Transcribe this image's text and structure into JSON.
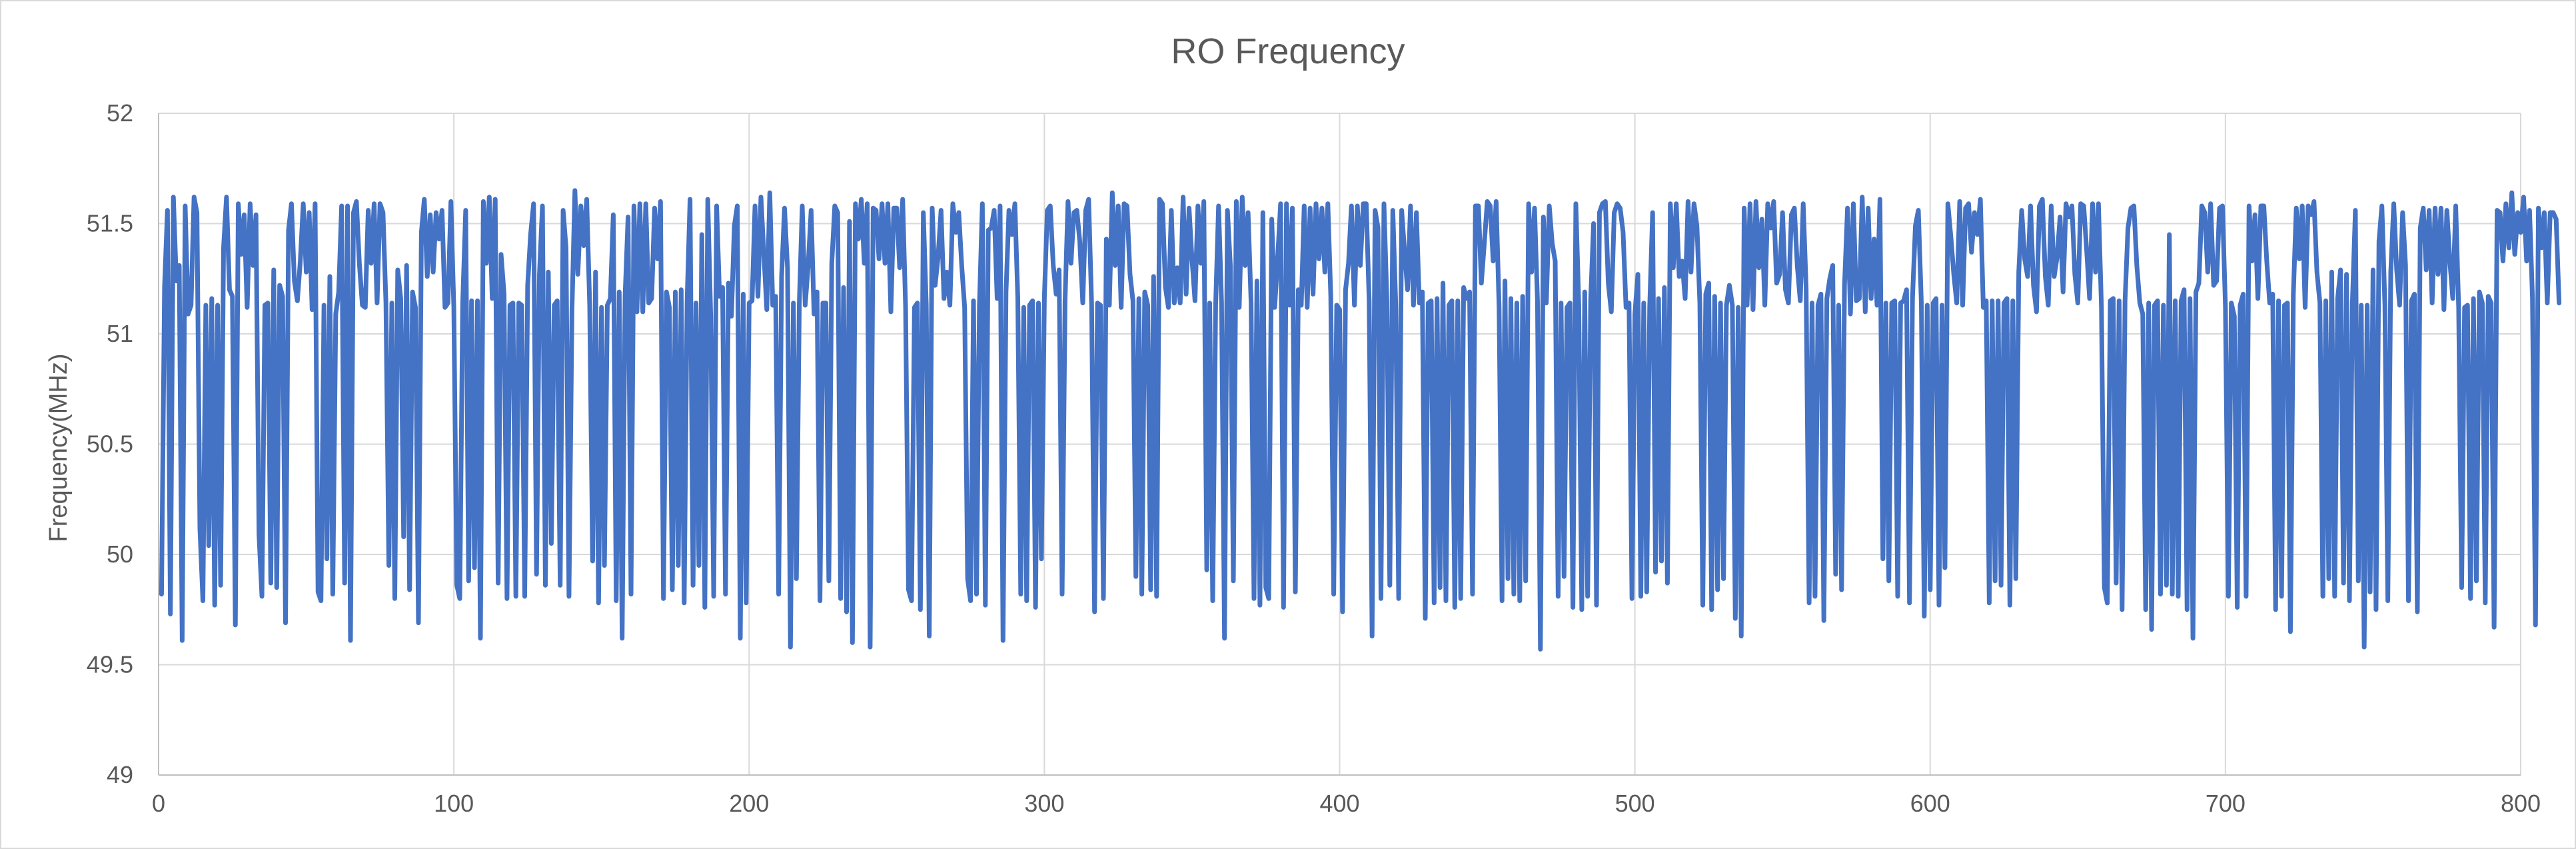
{
  "chart_data": {
    "type": "line",
    "title": "RO Frequency",
    "xlabel": "",
    "ylabel": "Frequency(MHz)",
    "xlim": [
      0,
      800
    ],
    "ylim": [
      49,
      52
    ],
    "x_ticks": [
      "0",
      "100",
      "200",
      "300",
      "400",
      "500",
      "600",
      "700",
      "800"
    ],
    "y_ticks": [
      "49",
      "49.5",
      "50",
      "50.5",
      "51",
      "51.5",
      "52"
    ],
    "grid": true,
    "legend": "none",
    "series": [
      {
        "color": "#4472C4",
        "x_start": 1,
        "x_step": 1,
        "values": [
          49.82,
          51.21,
          51.56,
          49.73,
          51.62,
          51.24,
          51.31,
          49.61,
          51.58,
          51.09,
          51.13,
          51.62,
          51.55,
          50.12,
          49.79,
          51.13,
          50.04,
          51.16,
          49.77,
          51.13,
          49.86,
          51.39,
          51.62,
          51.2,
          51.17,
          49.68,
          51.59,
          51.36,
          51.54,
          51.12,
          51.59,
          51.31,
          51.54,
          50.09,
          49.81,
          51.13,
          51.14,
          49.87,
          51.29,
          49.85,
          51.22,
          51.17,
          49.69,
          51.47,
          51.59,
          51.24,
          51.15,
          51.33,
          51.59,
          51.28,
          51.55,
          51.11,
          51.59,
          49.83,
          49.79,
          51.13,
          49.98,
          51.26,
          49.82,
          51.09,
          51.19,
          51.58,
          49.87,
          51.58,
          49.61,
          51.55,
          51.6,
          51.32,
          51.13,
          51.12,
          51.56,
          51.32,
          51.59,
          51.14,
          51.59,
          51.55,
          51.14,
          49.95,
          51.14,
          49.8,
          51.29,
          51.16,
          50.08,
          51.31,
          49.84,
          51.19,
          51.12,
          49.69,
          51.46,
          51.61,
          51.26,
          51.54,
          51.28,
          51.55,
          51.43,
          51.56,
          51.12,
          51.14,
          51.6,
          51.12,
          49.86,
          49.8,
          51.14,
          51.56,
          49.88,
          51.15,
          49.94,
          51.15,
          49.62,
          51.6,
          51.32,
          51.62,
          51.16,
          51.61,
          49.87,
          51.36,
          51.18,
          49.8,
          51.13,
          51.14,
          49.81,
          51.14,
          51.13,
          49.81,
          51.22,
          51.45,
          51.59,
          49.91,
          51.27,
          51.58,
          49.86,
          51.28,
          50.05,
          51.13,
          51.15,
          49.86,
          51.56,
          51.39,
          49.81,
          51.11,
          51.65,
          51.27,
          51.58,
          51.4,
          51.61,
          51.13,
          49.97,
          51.28,
          49.78,
          51.12,
          49.95,
          51.13,
          51.16,
          51.54,
          49.79,
          51.19,
          49.62,
          51.17,
          51.53,
          49.82,
          51.58,
          51.1,
          51.59,
          51.1,
          51.59,
          51.14,
          51.16,
          51.57,
          51.34,
          51.6,
          49.8,
          51.19,
          51.12,
          49.84,
          51.19,
          49.95,
          51.2,
          49.78,
          51.15,
          51.61,
          49.86,
          51.14,
          49.95,
          51.45,
          49.76,
          51.61,
          51.08,
          49.81,
          51.58,
          51.17,
          51.21,
          49.82,
          51.23,
          51.08,
          51.49,
          51.58,
          49.62,
          51.18,
          49.78,
          51.14,
          51.15,
          51.58,
          51.17,
          51.62,
          51.36,
          51.11,
          51.64,
          51.13,
          51.17,
          49.82,
          51.26,
          51.57,
          51.3,
          49.58,
          51.14,
          49.89,
          51.14,
          51.58,
          51.13,
          51.31,
          51.56,
          51.09,
          51.19,
          49.79,
          51.14,
          51.14,
          49.88,
          51.32,
          51.58,
          51.55,
          49.8,
          51.21,
          49.74,
          51.51,
          49.6,
          51.59,
          51.43,
          51.61,
          51.32,
          51.59,
          49.58,
          51.57,
          51.56,
          51.34,
          51.59,
          51.32,
          51.59,
          51.1,
          51.57,
          51.57,
          51.3,
          51.61,
          51.12,
          49.84,
          49.79,
          51.12,
          51.14,
          49.75,
          51.55,
          51.13,
          49.63,
          51.57,
          51.22,
          51.35,
          51.56,
          51.16,
          51.28,
          51.13,
          51.59,
          51.46,
          51.55,
          51.31,
          51.12,
          49.89,
          49.79,
          51.15,
          49.82,
          51.13,
          51.59,
          49.77,
          51.47,
          51.48,
          51.56,
          51.16,
          51.58,
          49.61,
          51.19,
          51.56,
          51.45,
          51.59,
          51.16,
          49.82,
          51.12,
          49.79,
          51.13,
          51.15,
          49.76,
          51.14,
          49.98,
          51.17,
          51.56,
          51.58,
          51.31,
          51.18,
          51.29,
          49.82,
          51.15,
          51.6,
          51.32,
          51.55,
          51.56,
          51.42,
          51.14,
          51.56,
          51.61,
          51.13,
          49.74,
          51.14,
          51.13,
          49.8,
          51.43,
          51.13,
          51.64,
          51.31,
          51.58,
          51.12,
          51.59,
          51.58,
          51.27,
          51.15,
          49.9,
          51.16,
          49.82,
          51.19,
          51.13,
          49.84,
          51.26,
          49.81,
          51.61,
          51.59,
          51.21,
          51.12,
          51.56,
          51.14,
          51.3,
          51.14,
          51.62,
          51.18,
          51.57,
          51.34,
          51.15,
          51.58,
          51.32,
          51.6,
          49.93,
          51.14,
          49.79,
          51.13,
          51.58,
          51.14,
          49.62,
          51.56,
          51.31,
          49.88,
          51.6,
          51.12,
          51.62,
          51.31,
          51.55,
          51.14,
          49.8,
          51.24,
          49.77,
          51.55,
          49.85,
          49.8,
          51.52,
          51.12,
          51.34,
          51.59,
          49.76,
          51.59,
          51.13,
          51.57,
          49.83,
          51.2,
          51.13,
          51.58,
          51.12,
          51.57,
          51.18,
          51.59,
          51.34,
          51.57,
          51.28,
          51.59,
          51.17,
          49.82,
          51.13,
          51.11,
          49.74,
          51.2,
          51.32,
          51.58,
          51.13,
          51.58,
          51.31,
          51.59,
          51.59,
          51.15,
          49.63,
          51.56,
          51.48,
          49.8,
          51.59,
          51.15,
          49.86,
          51.56,
          51.13,
          49.8,
          51.56,
          51.37,
          51.2,
          51.58,
          51.13,
          51.55,
          51.14,
          51.19,
          49.71,
          51.14,
          51.15,
          49.78,
          51.16,
          49.85,
          51.23,
          49.79,
          51.13,
          51.15,
          49.76,
          51.15,
          49.8,
          51.21,
          51.16,
          51.19,
          49.82,
          51.58,
          51.58,
          51.23,
          51.41,
          51.6,
          51.58,
          51.33,
          51.6,
          51.12,
          49.79,
          51.24,
          49.89,
          51.16,
          49.82,
          51.14,
          49.79,
          51.17,
          49.88,
          51.59,
          51.28,
          51.57,
          51.15,
          49.57,
          51.53,
          51.14,
          51.58,
          51.41,
          51.33,
          49.81,
          51.14,
          49.9,
          51.12,
          51.14,
          49.76,
          51.59,
          51.13,
          49.75,
          51.19,
          49.81,
          51.15,
          51.5,
          49.77,
          51.55,
          51.59,
          51.6,
          51.23,
          51.1,
          51.55,
          51.59,
          51.57,
          51.46,
          51.12,
          51.14,
          49.8,
          51.09,
          51.27,
          49.81,
          51.14,
          49.83,
          51.12,
          51.55,
          49.92,
          51.16,
          49.97,
          51.21,
          49.87,
          51.59,
          51.3,
          51.59,
          51.26,
          51.33,
          51.16,
          51.6,
          51.28,
          51.59,
          51.49,
          51.14,
          49.77,
          51.18,
          51.23,
          49.75,
          51.17,
          49.84,
          51.14,
          49.89,
          51.13,
          51.22,
          51.13,
          49.71,
          51.12,
          49.63,
          51.57,
          51.13,
          51.59,
          51.11,
          51.6,
          51.3,
          51.52,
          51.13,
          51.59,
          51.48,
          51.6,
          51.23,
          51.27,
          51.55,
          51.2,
          51.14,
          51.54,
          51.57,
          51.31,
          51.15,
          51.59,
          51.21,
          49.78,
          51.14,
          49.81,
          51.13,
          51.18,
          49.7,
          51.16,
          51.25,
          51.31,
          49.91,
          51.13,
          49.84,
          51.22,
          51.57,
          51.09,
          51.59,
          51.15,
          51.16,
          51.62,
          51.1,
          51.57,
          51.16,
          51.43,
          51.13,
          51.61,
          49.98,
          51.14,
          49.88,
          51.14,
          51.15,
          49.81,
          51.14,
          51.15,
          51.2,
          49.78,
          51.16,
          51.49,
          51.56,
          51.14,
          49.72,
          51.13,
          49.84,
          51.14,
          51.16,
          49.77,
          51.13,
          49.94,
          51.59,
          51.44,
          51.27,
          51.14,
          51.6,
          51.13,
          51.57,
          51.59,
          51.37,
          51.55,
          51.45,
          51.61,
          51.12,
          51.15,
          49.78,
          51.15,
          49.88,
          51.15,
          49.86,
          51.14,
          51.16,
          49.77,
          51.15,
          49.89,
          51.28,
          51.56,
          51.34,
          51.26,
          51.58,
          51.22,
          51.1,
          51.58,
          51.61,
          51.26,
          51.13,
          51.58,
          51.26,
          51.35,
          51.53,
          51.19,
          51.59,
          51.53,
          51.58,
          51.27,
          51.14,
          51.59,
          51.58,
          51.38,
          51.16,
          51.59,
          51.28,
          51.59,
          51.12,
          49.85,
          49.78,
          51.15,
          51.16,
          49.87,
          51.15,
          49.75,
          51.15,
          51.48,
          51.57,
          51.58,
          51.31,
          51.14,
          51.09,
          49.75,
          51.14,
          49.66,
          51.13,
          51.15,
          49.82,
          51.13,
          49.86,
          51.45,
          49.82,
          51.15,
          49.81,
          51.15,
          51.2,
          49.75,
          51.16,
          49.62,
          51.19,
          51.23,
          51.58,
          51.55,
          51.28,
          51.59,
          51.22,
          51.24,
          51.57,
          51.58,
          51.12,
          49.81,
          51.14,
          51.08,
          49.76,
          51.13,
          51.18,
          49.81,
          51.58,
          51.33,
          51.54,
          51.16,
          51.58,
          51.58,
          51.33,
          51.14,
          51.18,
          49.75,
          51.15,
          49.81,
          51.13,
          51.14,
          49.65,
          51.18,
          51.57,
          51.34,
          51.58,
          51.12,
          51.58,
          51.54,
          51.6,
          51.28,
          51.14,
          49.81,
          51.15,
          49.89,
          51.28,
          49.81,
          51.16,
          51.29,
          49.87,
          51.27,
          49.79,
          51.14,
          51.56,
          49.88,
          51.13,
          49.58,
          51.13,
          49.83,
          51.29,
          49.75,
          51.42,
          51.58,
          51.13,
          49.79,
          51.28,
          51.59,
          51.29,
          51.13,
          51.55,
          51.31,
          49.79,
          51.15,
          51.18,
          49.74,
          51.48,
          51.57,
          51.29,
          51.56,
          51.14,
          51.57,
          51.27,
          51.57,
          51.11,
          51.56,
          51.33,
          51.16,
          51.58,
          51.12,
          49.85,
          51.12,
          51.13,
          49.8,
          51.16,
          49.88,
          51.19,
          51.14,
          49.78,
          51.17,
          51.14,
          49.67,
          51.56,
          51.55,
          51.33,
          51.59,
          51.39,
          51.64,
          51.36,
          51.55,
          51.46,
          51.62,
          51.33,
          51.56,
          51.16,
          49.68,
          51.57,
          51.39,
          51.55,
          51.14,
          51.55,
          51.55,
          51.52,
          51.14
        ]
      }
    ]
  }
}
